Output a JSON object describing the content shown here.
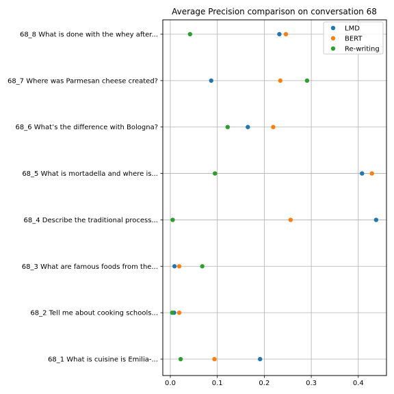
{
  "chart_data": {
    "type": "scatter",
    "title": "Average Precision comparison on conversation 68",
    "xlabel": "",
    "ylabel": "",
    "xlim": [
      -0.016,
      0.46
    ],
    "x_ticks": [
      0.0,
      0.1,
      0.2,
      0.3,
      0.4
    ],
    "x_tick_labels": [
      "0.0",
      "0.1",
      "0.2",
      "0.3",
      "0.4"
    ],
    "categories": [
      "68_1 What is cuisine is Emilia-...",
      "68_2 Tell me about cooking schools...",
      "68_3 What are famous foods from the...",
      "68_4 Describe the traditional process...",
      "68_5 What is mortadella and where is...",
      "68_6 What’s the difference with Bologna?",
      "68_7 Where was Parmesan cheese created?",
      "68_8 What is done with the whey after..."
    ],
    "grid": true,
    "legend_position": "top-right",
    "series": [
      {
        "name": "LMD",
        "color": "#1f77b4",
        "values": [
          0.191,
          0.008,
          0.009,
          0.438,
          0.408,
          0.165,
          0.087,
          0.232
        ]
      },
      {
        "name": "BERT",
        "color": "#ff7f0e",
        "values": [
          0.094,
          0.019,
          0.019,
          0.256,
          0.429,
          0.219,
          0.234,
          0.246
        ]
      },
      {
        "name": "Re-writing",
        "color": "#2ca02c",
        "values": [
          0.022,
          0.004,
          0.068,
          0.005,
          0.095,
          0.122,
          0.291,
          0.042
        ]
      }
    ]
  }
}
